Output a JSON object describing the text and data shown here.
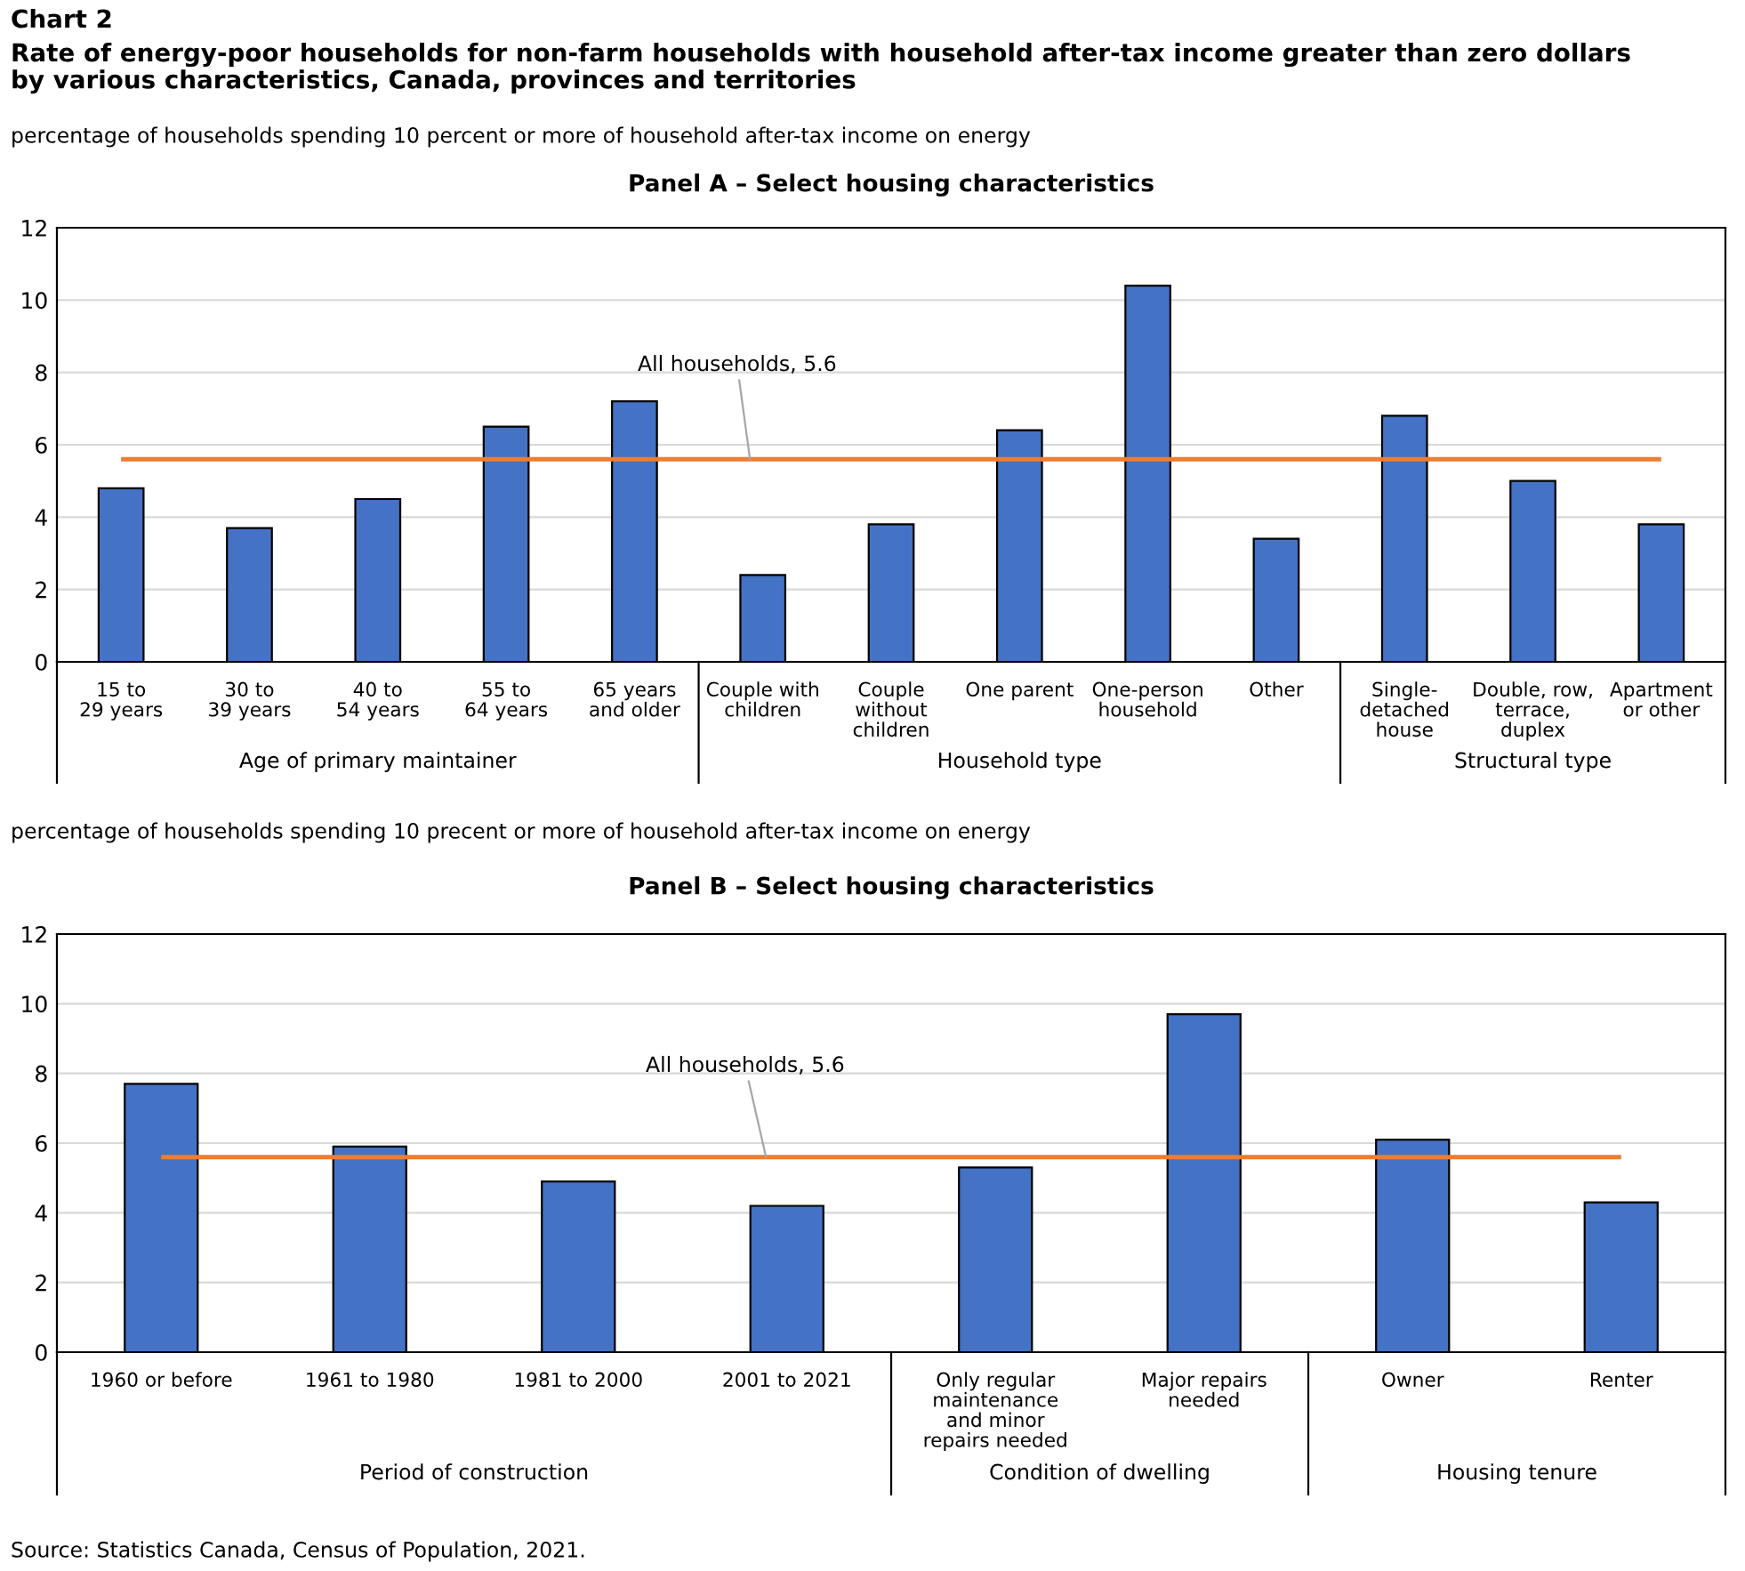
{
  "chart_data": [
    {
      "type": "bar",
      "title": "Panel A – Select housing characteristics",
      "ylabel": "percentage of households spending 10 percent or more of household after-tax income on energy",
      "annotations": [
        "Chart 2",
        "Rate of energy-poor households for non-farm households with household after-tax income greater than zero dollars\nby various characteristics, Canada, provinces and territories",
        "Age of primary maintainer",
        "Household type",
        "Structural type"
      ],
      "categories": [
        "15 to\n29 years",
        "30 to\n39 years",
        "40 to\n54 years",
        "55 to\n64 years",
        "65 years\nand older",
        "Couple with\nchildren",
        "Couple\nwithout\nchildren",
        "One parent",
        "One-person\nhousehold",
        "Other",
        "Single-\ndetached\nhouse",
        "Double, row,\nterrace,\nduplex",
        "Apartment\nor other"
      ],
      "values": [
        4.8,
        3.7,
        4.5,
        6.5,
        7.2,
        2.4,
        3.8,
        6.4,
        10.4,
        3.4,
        6.8,
        5.0,
        3.8
      ],
      "color": "#4472c4",
      "ylim": [
        0,
        12
      ],
      "yticks": [
        0,
        2,
        4,
        6,
        8,
        10,
        12
      ],
      "grid": "y",
      "ref_lines": [
        {
          "axis": "y",
          "value": 5.6,
          "label": "All households, 5.6",
          "color": "#ed7d31"
        }
      ]
    },
    {
      "type": "bar",
      "title": "Panel B – Select housing characteristics",
      "ylabel": "percentage of households spending 10 precent or more of household after-tax income on energy",
      "annotations": [
        "Period of construction",
        "Condition of dwelling",
        "Housing tenure",
        "Source: Statistics Canada, Census of Population, 2021."
      ],
      "categories": [
        "1960 or before",
        "1961 to 1980",
        "1981 to 2000",
        "2001 to 2021",
        "Only regular\nmaintenance\nand minor\nrepairs needed",
        "Major repairs\nneeded",
        "Owner",
        "Renter"
      ],
      "values": [
        7.7,
        5.9,
        4.9,
        4.2,
        5.3,
        9.7,
        6.1,
        4.3
      ],
      "color": "#4472c4",
      "ylim": [
        0,
        12
      ],
      "yticks": [
        0,
        2,
        4,
        6,
        8,
        10,
        12
      ],
      "grid": "y",
      "ref_lines": [
        {
          "axis": "y",
          "value": 5.6,
          "label": "All households, 5.6",
          "color": "#ed7d31"
        }
      ]
    }
  ]
}
